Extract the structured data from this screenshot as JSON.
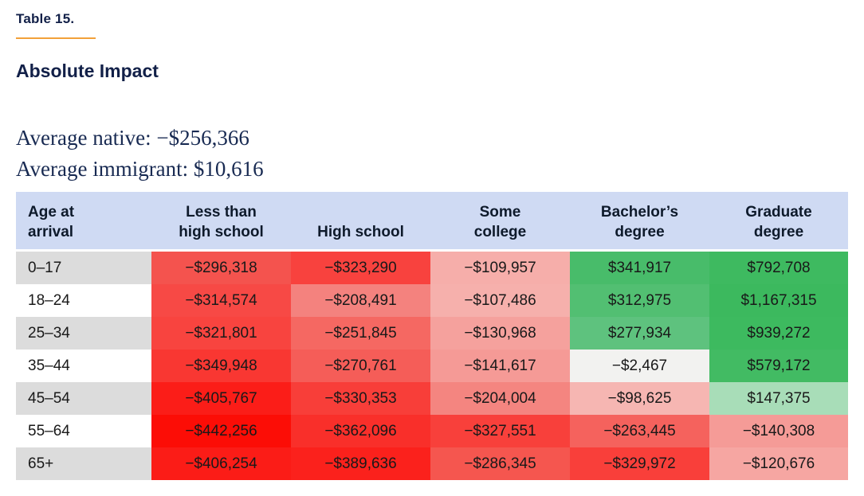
{
  "chart_data": {
    "type": "table",
    "kicker": "Table 15.",
    "title": "Absolute Impact",
    "annotations": [
      "Average native: −$256,366",
      "Average immigrant: $10,616"
    ],
    "columns": [
      "Age at arrival",
      "Less than high school",
      "High school",
      "Some college",
      "Bachelor’s degree",
      "Graduate degree"
    ],
    "header_lines": [
      [
        "Age at",
        "arrival"
      ],
      [
        "Less than",
        "high school"
      ],
      [
        "High school"
      ],
      [
        "Some",
        "college"
      ],
      [
        "Bachelor’s",
        "degree"
      ],
      [
        "Graduate",
        "degree"
      ]
    ],
    "rows": [
      {
        "age": "0–17",
        "age_bg": "#dcdcdc",
        "values": [
          -296318,
          -323290,
          -109957,
          341917,
          792708
        ],
        "display": [
          "−$296,318",
          "−$323,290",
          "−$109,957",
          "$341,917",
          "$792,708"
        ],
        "colors": [
          "#f4534e",
          "#f8423e",
          "#f6aeaa",
          "#48bc6a",
          "#3eba60"
        ]
      },
      {
        "age": "18–24",
        "age_bg": "#ffffff",
        "values": [
          -314574,
          -208491,
          -107486,
          312975,
          1167315
        ],
        "display": [
          "−$314,574",
          "−$208,491",
          "−$107,486",
          "$312,975",
          "$1,167,315"
        ],
        "colors": [
          "#f74945",
          "#f4827e",
          "#f6b0ac",
          "#52bf72",
          "#3cb95e"
        ]
      },
      {
        "age": "25–34",
        "age_bg": "#dcdcdc",
        "values": [
          -321801,
          -251845,
          -130968,
          277934,
          939272
        ],
        "display": [
          "−$321,801",
          "−$251,845",
          "−$130,968",
          "$277,934",
          "$939,272"
        ],
        "colors": [
          "#f8443f",
          "#f56862",
          "#f5a19d",
          "#5ec27e",
          "#3dba5f"
        ]
      },
      {
        "age": "35–44",
        "age_bg": "#ffffff",
        "values": [
          -349948,
          -270761,
          -141617,
          -2467,
          579172
        ],
        "display": [
          "−$349,948",
          "−$270,761",
          "−$141,617",
          "−$2,467",
          "$579,172"
        ],
        "colors": [
          "#f93732",
          "#f55d58",
          "#f59a96",
          "#f2f2f0",
          "#42bb63"
        ]
      },
      {
        "age": "45–54",
        "age_bg": "#dcdcdc",
        "values": [
          -405767,
          -330353,
          -204004,
          -98625,
          147375
        ],
        "display": [
          "−$405,767",
          "−$330,353",
          "−$204,004",
          "−$98,625",
          "$147,375"
        ],
        "colors": [
          "#fb1d18",
          "#f83e39",
          "#f48580",
          "#f6b6b2",
          "#a8ddb8"
        ]
      },
      {
        "age": "55–64",
        "age_bg": "#ffffff",
        "values": [
          -442256,
          -362096,
          -327551,
          -263445,
          -140308
        ],
        "display": [
          "−$442,256",
          "−$362,096",
          "−$327,551",
          "−$263,445",
          "−$140,308"
        ],
        "colors": [
          "#fc0d06",
          "#f92f2a",
          "#f8403b",
          "#f5625d",
          "#f59b97"
        ]
      },
      {
        "age": "65+",
        "age_bg": "#dcdcdc",
        "values": [
          -406254,
          -389636,
          -286345,
          -329972,
          -120676
        ],
        "display": [
          "−$406,254",
          "−$389,636",
          "−$286,345",
          "−$329,972",
          "−$120,676"
        ],
        "colors": [
          "#fb1c17",
          "#fb211c",
          "#f5564f",
          "#f93f3a",
          "#f6a6a2"
        ]
      }
    ],
    "layout": {
      "header_bg": "#cfdaf3",
      "accent_rule_color": "#f2a13a",
      "heading_color": "#122048",
      "legend": "cell background encodes value: red = negative fiscal impact, green = positive",
      "grid": false
    }
  }
}
